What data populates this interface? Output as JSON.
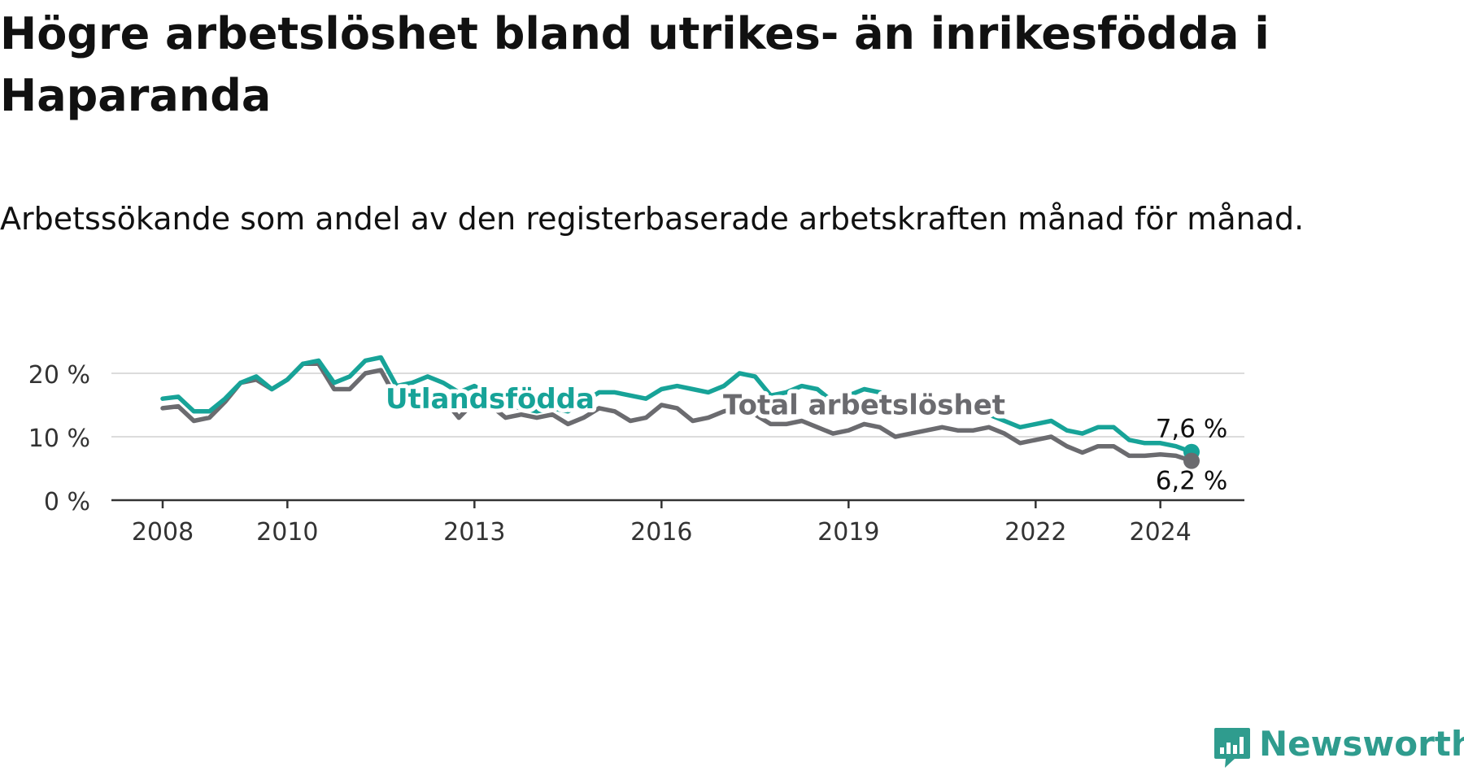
{
  "title": "Högre arbetslöshet bland utrikes- än inrikesfödda i Haparanda",
  "subtitle": "Arbetssökande som andel av den registerbaserade arbetskraften månad för månad.",
  "brand": {
    "name": "Newsworthy",
    "color": "#2f9c8e"
  },
  "chart_data": {
    "type": "line",
    "x_range": [
      "2008-01",
      "2024-07"
    ],
    "ylim": [
      0,
      25
    ],
    "yticks": [
      0,
      10,
      20
    ],
    "ytick_labels": [
      "0 %",
      "10 %",
      "20 %"
    ],
    "xticks": [
      2008,
      2010,
      2013,
      2016,
      2019,
      2022,
      2024
    ],
    "xtick_labels": [
      "2008",
      "2010",
      "2013",
      "2016",
      "2019",
      "2022",
      "2024"
    ],
    "grid": true,
    "series": [
      {
        "name": "Utlandsfödda",
        "color": "#17a398",
        "end_label": "7,6 %",
        "points": [
          [
            "2008-01",
            16.0
          ],
          [
            "2008-04",
            16.3
          ],
          [
            "2008-07",
            14.0
          ],
          [
            "2008-10",
            14.0
          ],
          [
            "2009-01",
            16.0
          ],
          [
            "2009-04",
            18.5
          ],
          [
            "2009-07",
            19.5
          ],
          [
            "2009-10",
            17.5
          ],
          [
            "2010-01",
            19.0
          ],
          [
            "2010-04",
            21.5
          ],
          [
            "2010-07",
            22.0
          ],
          [
            "2010-10",
            18.5
          ],
          [
            "2011-01",
            19.5
          ],
          [
            "2011-04",
            22.0
          ],
          [
            "2011-07",
            22.5
          ],
          [
            "2011-10",
            18.0
          ],
          [
            "2012-01",
            18.5
          ],
          [
            "2012-04",
            19.5
          ],
          [
            "2012-07",
            18.5
          ],
          [
            "2012-10",
            17.0
          ],
          [
            "2013-01",
            18.0
          ],
          [
            "2013-04",
            16.5
          ],
          [
            "2013-07",
            15.0
          ],
          [
            "2013-10",
            14.5
          ],
          [
            "2014-01",
            14.0
          ],
          [
            "2014-04",
            14.5
          ],
          [
            "2014-07",
            14.0
          ],
          [
            "2014-10",
            15.5
          ],
          [
            "2015-01",
            17.0
          ],
          [
            "2015-04",
            17.0
          ],
          [
            "2015-07",
            16.5
          ],
          [
            "2015-10",
            16.0
          ],
          [
            "2016-01",
            17.5
          ],
          [
            "2016-04",
            18.0
          ],
          [
            "2016-07",
            17.5
          ],
          [
            "2016-10",
            17.0
          ],
          [
            "2017-01",
            18.0
          ],
          [
            "2017-04",
            20.0
          ],
          [
            "2017-07",
            19.5
          ],
          [
            "2017-10",
            16.5
          ],
          [
            "2018-01",
            17.0
          ],
          [
            "2018-04",
            18.0
          ],
          [
            "2018-07",
            17.5
          ],
          [
            "2018-10",
            15.5
          ],
          [
            "2019-01",
            16.5
          ],
          [
            "2019-04",
            17.5
          ],
          [
            "2019-07",
            17.0
          ],
          [
            "2019-10",
            15.5
          ],
          [
            "2020-01",
            16.0
          ],
          [
            "2020-04",
            15.5
          ],
          [
            "2020-07",
            15.5
          ],
          [
            "2020-10",
            14.5
          ],
          [
            "2021-01",
            14.5
          ],
          [
            "2021-04",
            13.5
          ],
          [
            "2021-07",
            12.5
          ],
          [
            "2021-10",
            11.5
          ],
          [
            "2022-01",
            12.0
          ],
          [
            "2022-04",
            12.5
          ],
          [
            "2022-07",
            11.0
          ],
          [
            "2022-10",
            10.5
          ],
          [
            "2023-01",
            11.5
          ],
          [
            "2023-04",
            11.5
          ],
          [
            "2023-07",
            9.5
          ],
          [
            "2023-10",
            9.0
          ],
          [
            "2024-01",
            9.0
          ],
          [
            "2024-04",
            8.5
          ],
          [
            "2024-07",
            7.6
          ]
        ]
      },
      {
        "name": "Total arbetslöshet",
        "color": "#6b6b6f",
        "end_label": "6,2 %",
        "points": [
          [
            "2008-01",
            14.5
          ],
          [
            "2008-04",
            14.8
          ],
          [
            "2008-07",
            12.5
          ],
          [
            "2008-10",
            13.0
          ],
          [
            "2009-01",
            15.5
          ],
          [
            "2009-04",
            18.5
          ],
          [
            "2009-07",
            19.0
          ],
          [
            "2009-10",
            17.5
          ],
          [
            "2010-01",
            19.0
          ],
          [
            "2010-04",
            21.5
          ],
          [
            "2010-07",
            21.5
          ],
          [
            "2010-10",
            17.5
          ],
          [
            "2011-01",
            17.5
          ],
          [
            "2011-04",
            20.0
          ],
          [
            "2011-07",
            20.5
          ],
          [
            "2011-10",
            16.0
          ],
          [
            "2012-01",
            16.0
          ],
          [
            "2012-04",
            17.5
          ],
          [
            "2012-07",
            16.0
          ],
          [
            "2012-10",
            13.0
          ],
          [
            "2013-01",
            15.5
          ],
          [
            "2013-04",
            15.0
          ],
          [
            "2013-07",
            13.0
          ],
          [
            "2013-10",
            13.5
          ],
          [
            "2014-01",
            13.0
          ],
          [
            "2014-04",
            13.5
          ],
          [
            "2014-07",
            12.0
          ],
          [
            "2014-10",
            13.0
          ],
          [
            "2015-01",
            14.5
          ],
          [
            "2015-04",
            14.0
          ],
          [
            "2015-07",
            12.5
          ],
          [
            "2015-10",
            13.0
          ],
          [
            "2016-01",
            15.0
          ],
          [
            "2016-04",
            14.5
          ],
          [
            "2016-07",
            12.5
          ],
          [
            "2016-10",
            13.0
          ],
          [
            "2017-01",
            14.0
          ],
          [
            "2017-04",
            14.5
          ],
          [
            "2017-07",
            13.5
          ],
          [
            "2017-10",
            12.0
          ],
          [
            "2018-01",
            12.0
          ],
          [
            "2018-04",
            12.5
          ],
          [
            "2018-07",
            11.5
          ],
          [
            "2018-10",
            10.5
          ],
          [
            "2019-01",
            11.0
          ],
          [
            "2019-04",
            12.0
          ],
          [
            "2019-07",
            11.5
          ],
          [
            "2019-10",
            10.0
          ],
          [
            "2020-01",
            10.5
          ],
          [
            "2020-04",
            11.0
          ],
          [
            "2020-07",
            11.5
          ],
          [
            "2020-10",
            11.0
          ],
          [
            "2021-01",
            11.0
          ],
          [
            "2021-04",
            11.5
          ],
          [
            "2021-07",
            10.5
          ],
          [
            "2021-10",
            9.0
          ],
          [
            "2022-01",
            9.5
          ],
          [
            "2022-04",
            10.0
          ],
          [
            "2022-07",
            8.5
          ],
          [
            "2022-10",
            7.5
          ],
          [
            "2023-01",
            8.5
          ],
          [
            "2023-04",
            8.5
          ],
          [
            "2023-07",
            7.0
          ],
          [
            "2023-10",
            7.0
          ],
          [
            "2024-01",
            7.2
          ],
          [
            "2024-04",
            7.0
          ],
          [
            "2024-07",
            6.2
          ]
        ]
      }
    ],
    "annotations": [
      {
        "text": "Utlandsfödda",
        "series": 0,
        "x": "2013-04",
        "y": 14.5,
        "color": "#17a398"
      },
      {
        "text": "Total arbetslöshet",
        "series": 1,
        "x": "2019-04",
        "y": 13.5,
        "color": "#6b6b6f"
      }
    ]
  }
}
